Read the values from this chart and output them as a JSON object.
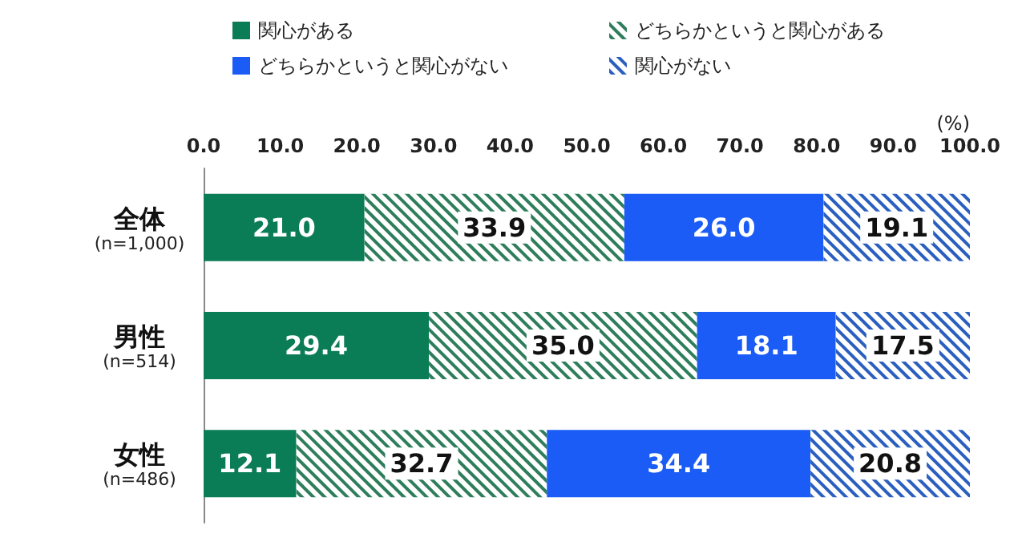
{
  "chart_data": {
    "type": "bar",
    "orientation": "horizontal",
    "stacked": true,
    "xlabel": "(%)",
    "categories": [
      "全体\n(n=1,000)",
      "男性\n(n=514)",
      "女性\n(n=486)"
    ],
    "series": [
      {
        "name": "関心がある",
        "color": "#0b7d56",
        "values": [
          21.0,
          29.4,
          12.1
        ],
        "value_labels": [
          "21.0",
          "29.4",
          "12.1"
        ]
      },
      {
        "name": "どちらかというと関心がある",
        "color": "#2e7d5b",
        "values": [
          33.9,
          35.0,
          32.7
        ],
        "value_labels": [
          "33.9",
          "35.0",
          "32.7"
        ]
      },
      {
        "name": "どちらかというと関心がない",
        "color": "#1a5cf5",
        "values": [
          26.0,
          18.1,
          34.4
        ],
        "value_labels": [
          "26.0",
          "18.1",
          "34.4"
        ]
      },
      {
        "name": "関心がない",
        "color": "#2b5fbf",
        "values": [
          19.1,
          17.5,
          20.8
        ],
        "value_labels": [
          "19.1",
          "17.5",
          "20.8"
        ]
      }
    ],
    "xlim": [
      0,
      100
    ],
    "xticks": [
      {
        "value": 0,
        "label": "0.0"
      },
      {
        "value": 10,
        "label": "10.0"
      },
      {
        "value": 20,
        "label": "20.0"
      },
      {
        "value": 30,
        "label": "30.0"
      },
      {
        "value": 40,
        "label": "40.0"
      },
      {
        "value": 50,
        "label": "50.0"
      },
      {
        "value": 60,
        "label": "60.0"
      },
      {
        "value": 70,
        "label": "70.0"
      },
      {
        "value": 80,
        "label": "80.0"
      },
      {
        "value": 90,
        "label": "90.0"
      },
      {
        "value": 100,
        "label": "100.0"
      }
    ],
    "grid": false,
    "legend": "top"
  }
}
